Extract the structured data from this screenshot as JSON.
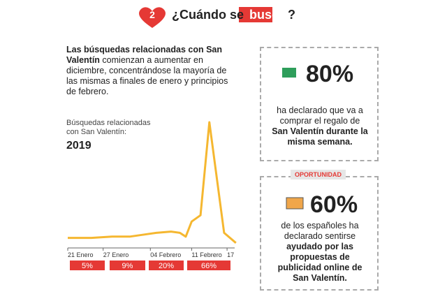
{
  "header": {
    "step": "2",
    "title_before": "¿Cuándo se ",
    "title_highlight": "busca",
    "title_after": "?"
  },
  "intro": {
    "bold": "Las búsquedas relacionadas con San Valentín",
    "text": "comienzan a aumentar en diciembre, concentrándose la mayoría de las mismas a finales de enero y principios de febrero."
  },
  "chart_data": {
    "type": "line",
    "subtitle": "Búsquedas relacionadas con San Valentín:",
    "title": "2019",
    "x": [
      0,
      4,
      7.5,
      10.5,
      13.5,
      15,
      17.5,
      19,
      20,
      21,
      22.5,
      24,
      26.5,
      28.5
    ],
    "values": [
      8,
      8,
      9,
      9,
      11,
      12,
      13,
      12,
      9,
      21,
      26,
      100,
      12,
      4
    ],
    "color": "#f5b730",
    "xlim": [
      0,
      29
    ],
    "ylim": [
      0,
      100
    ],
    "xticks": [
      {
        "value": 0,
        "label": "21 Enero"
      },
      {
        "value": 6,
        "label": "27 Enero"
      },
      {
        "value": 14,
        "label": "04 Febrero"
      },
      {
        "value": 21,
        "label": "11 Febrero"
      },
      {
        "value": 27,
        "label": "17"
      }
    ],
    "period_labels": [
      "5%",
      "9%",
      "20%",
      "66%"
    ]
  },
  "cards": [
    {
      "figure": "80%",
      "text": "ha declarado que va a comprar el regalo de",
      "bold": "San Valentín durante la misma semana."
    },
    {
      "tag": "OPORTUNIDAD",
      "figure": "60%",
      "text": "de los españoles ha declarado sentirse",
      "bold": "ayudado por las propuestas de publicidad online de San Valentín."
    }
  ]
}
